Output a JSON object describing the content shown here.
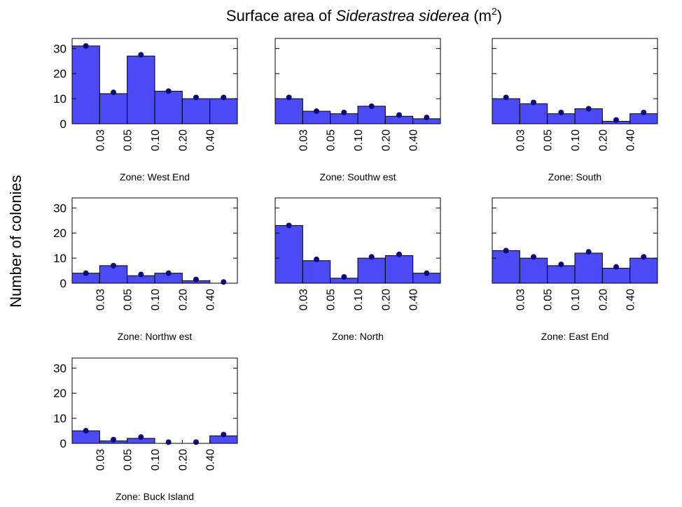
{
  "title": {
    "prefix": "Surface area of ",
    "species": "Siderastrea siderea",
    "unit": " (m",
    "exponent": "2",
    "suffix": ")"
  },
  "ylabel": "Number of colonies",
  "chart_data": [
    {
      "type": "histogram",
      "xlabel": "Zone: West End",
      "counts": [
        31,
        12,
        27,
        13,
        10,
        10
      ],
      "points": [
        31,
        12.5,
        27.5,
        13,
        10.5,
        10.5
      ],
      "xticks": [
        0.03,
        0.05,
        {
          "value": 0.1,
          "label": "0.10"
        },
        {
          "value": 0.2,
          "label": "0.20"
        },
        {
          "value": 0.4,
          "label": "0.40"
        }
      ],
      "ylim": [
        0,
        34
      ],
      "yticks": [
        0,
        10,
        20,
        30
      ],
      "bar_color": "#4b4bf5",
      "point_color": "#0a0a80"
    },
    {
      "type": "histogram",
      "xlabel": "Zone: Southw est",
      "counts": [
        10,
        5,
        4,
        7,
        3,
        2
      ],
      "points": [
        10.5,
        5,
        4.5,
        7,
        3.5,
        2.5
      ],
      "xticks": [
        0.03,
        0.05,
        {
          "value": 0.1,
          "label": "0.10"
        },
        {
          "value": 0.2,
          "label": "0.20"
        },
        {
          "value": 0.4,
          "label": "0.40"
        }
      ],
      "ylim": [
        0,
        34
      ],
      "yticks": [
        0,
        10,
        20,
        30
      ],
      "bar_color": "#4b4bf5",
      "point_color": "#0a0a80"
    },
    {
      "type": "histogram",
      "xlabel": "Zone: South",
      "counts": [
        10,
        8,
        4,
        6,
        1,
        4
      ],
      "points": [
        10.5,
        8.5,
        4.5,
        6,
        1.5,
        4.5
      ],
      "xticks": [
        0.03,
        0.05,
        {
          "value": 0.1,
          "label": "0.10"
        },
        {
          "value": 0.2,
          "label": "0.20"
        },
        {
          "value": 0.4,
          "label": "0.40"
        }
      ],
      "ylim": [
        0,
        34
      ],
      "yticks": [
        0,
        10,
        20,
        30
      ],
      "bar_color": "#4b4bf5",
      "point_color": "#0a0a80"
    },
    {
      "type": "histogram",
      "xlabel": "Zone: Northw est",
      "counts": [
        4,
        7,
        3,
        4,
        1,
        0
      ],
      "points": [
        4,
        7,
        3.5,
        4,
        1.5,
        0.5
      ],
      "xticks": [
        0.03,
        0.05,
        {
          "value": 0.1,
          "label": "0.10"
        },
        {
          "value": 0.2,
          "label": "0.20"
        },
        {
          "value": 0.4,
          "label": "0.40"
        }
      ],
      "ylim": [
        0,
        34
      ],
      "yticks": [
        0,
        10,
        20,
        30
      ],
      "bar_color": "#4b4bf5",
      "point_color": "#0a0a80"
    },
    {
      "type": "histogram",
      "xlabel": "Zone: North",
      "counts": [
        23,
        9,
        2,
        10,
        11,
        4
      ],
      "points": [
        23,
        9.5,
        2.5,
        10.5,
        11.5,
        4
      ],
      "xticks": [
        0.03,
        0.05,
        {
          "value": 0.1,
          "label": "0.10"
        },
        {
          "value": 0.2,
          "label": "0.20"
        },
        {
          "value": 0.4,
          "label": "0.40"
        }
      ],
      "ylim": [
        0,
        34
      ],
      "yticks": [
        0,
        10,
        20,
        30
      ],
      "bar_color": "#4b4bf5",
      "point_color": "#0a0a80"
    },
    {
      "type": "histogram",
      "xlabel": "Zone: East End",
      "counts": [
        13,
        10,
        7,
        12,
        6,
        10
      ],
      "points": [
        13,
        10.5,
        7.5,
        12.5,
        6.5,
        10.5
      ],
      "xticks": [
        0.03,
        0.05,
        {
          "value": 0.1,
          "label": "0.10"
        },
        {
          "value": 0.2,
          "label": "0.20"
        },
        {
          "value": 0.4,
          "label": "0.40"
        }
      ],
      "ylim": [
        0,
        34
      ],
      "yticks": [
        0,
        10,
        20,
        30
      ],
      "bar_color": "#4b4bf5",
      "point_color": "#0a0a80"
    },
    {
      "type": "histogram",
      "xlabel": "Zone: Buck Island",
      "counts": [
        5,
        1,
        2,
        0,
        0,
        3
      ],
      "points": [
        5,
        1.5,
        2.5,
        0.5,
        0.5,
        3.5
      ],
      "xticks": [
        0.03,
        0.05,
        {
          "value": 0.1,
          "label": "0.10"
        },
        {
          "value": 0.2,
          "label": "0.20"
        },
        {
          "value": 0.4,
          "label": "0.40"
        }
      ],
      "ylim": [
        0,
        34
      ],
      "yticks": [
        0,
        10,
        20,
        30
      ],
      "bar_color": "#4b4bf5",
      "point_color": "#0a0a80"
    }
  ]
}
